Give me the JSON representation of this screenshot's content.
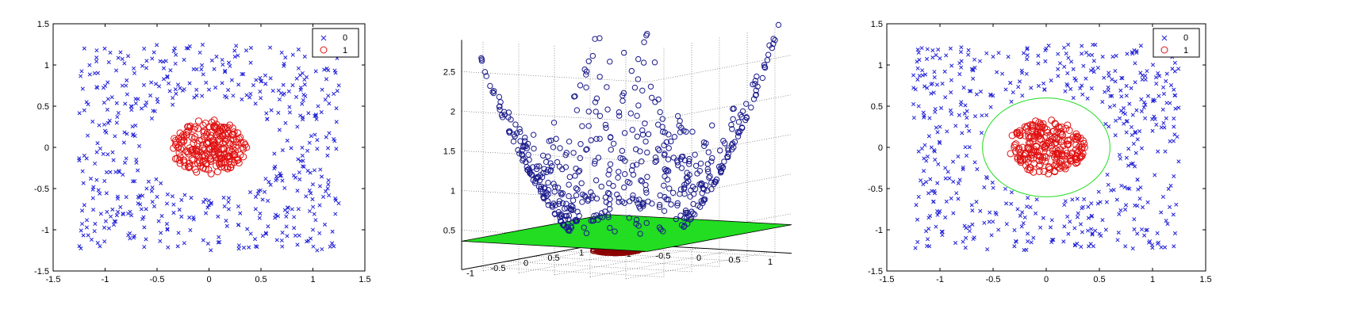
{
  "chart_data": [
    {
      "type": "scatter",
      "title": "",
      "xlabel": "",
      "ylabel": "",
      "xlim": [
        -1.5,
        1.5
      ],
      "ylim": [
        -1.5,
        1.5
      ],
      "xticks": [
        "-1.5",
        "-1",
        "-0.5",
        "0",
        "0.5",
        "1",
        "1.5"
      ],
      "yticks": [
        "-1.5",
        "-1",
        "-0.5",
        "0",
        "0.5",
        "1",
        "1.5"
      ],
      "grid": false,
      "legend": {
        "placement": "top-right",
        "entries": [
          "0",
          "1"
        ]
      },
      "series": [
        {
          "name": "0",
          "marker": "x",
          "color": "#2020d8",
          "points": [
            [
              -1.2,
              1.2
            ],
            [
              -1.1,
              0.9
            ],
            [
              -0.95,
              1.15
            ],
            [
              -0.8,
              0.75
            ],
            [
              -0.6,
              1.05
            ],
            [
              -0.4,
              0.85
            ],
            [
              -0.2,
              1.2
            ],
            [
              0.05,
              0.95
            ],
            [
              0.25,
              1.1
            ],
            [
              0.5,
              0.8
            ],
            [
              0.7,
              1.15
            ],
            [
              0.9,
              0.9
            ],
            [
              1.1,
              1.2
            ],
            [
              1.2,
              0.65
            ],
            [
              -1.2,
              0.45
            ],
            [
              -1.0,
              0.2
            ],
            [
              -0.75,
              0.5
            ],
            [
              -0.55,
              0.35
            ],
            [
              0.6,
              0.45
            ],
            [
              0.85,
              0.25
            ],
            [
              1.05,
              0.5
            ],
            [
              1.2,
              0.1
            ],
            [
              -1.2,
              -0.1
            ],
            [
              -0.95,
              -0.3
            ],
            [
              -0.7,
              -0.15
            ],
            [
              -0.6,
              -0.5
            ],
            [
              0.65,
              -0.35
            ],
            [
              0.9,
              -0.1
            ],
            [
              1.15,
              -0.4
            ],
            [
              -1.2,
              -0.7
            ],
            [
              -0.9,
              -0.9
            ],
            [
              -0.65,
              -0.75
            ],
            [
              -0.4,
              -1.0
            ],
            [
              -0.15,
              -0.85
            ],
            [
              0.1,
              -1.15
            ],
            [
              0.3,
              -0.8
            ],
            [
              0.55,
              -1.05
            ],
            [
              0.8,
              -0.75
            ],
            [
              1.0,
              -1.0
            ],
            [
              1.2,
              -1.2
            ],
            [
              -1.05,
              -1.2
            ],
            [
              -0.3,
              -1.2
            ],
            [
              0.45,
              -1.2
            ],
            [
              1.1,
              -0.6
            ],
            [
              -0.35,
              0.6
            ],
            [
              0.4,
              0.65
            ],
            [
              -0.5,
              -0.6
            ],
            [
              0.45,
              -0.6
            ],
            [
              0.0,
              -0.7
            ],
            [
              0.0,
              0.7
            ]
          ]
        },
        {
          "name": "1",
          "marker": "o",
          "color": "#e01010",
          "points": [
            [
              -0.3,
              0.0
            ],
            [
              -0.25,
              0.15
            ],
            [
              -0.2,
              0.25
            ],
            [
              -0.1,
              0.32
            ],
            [
              0.05,
              0.33
            ],
            [
              0.2,
              0.27
            ],
            [
              0.3,
              0.12
            ],
            [
              0.33,
              -0.02
            ],
            [
              0.28,
              -0.15
            ],
            [
              0.18,
              -0.26
            ],
            [
              0.02,
              -0.32
            ],
            [
              -0.12,
              -0.3
            ],
            [
              -0.24,
              -0.18
            ],
            [
              -0.15,
              0.05
            ],
            [
              -0.05,
              0.18
            ],
            [
              0.1,
              0.1
            ],
            [
              0.15,
              -0.08
            ],
            [
              0.0,
              -0.12
            ],
            [
              -0.1,
              -0.05
            ],
            [
              0.05,
              0.02
            ]
          ]
        }
      ]
    },
    {
      "type": "scatter3d",
      "title": "",
      "zlim": [
        0,
        3
      ],
      "zticks": [
        "0.5",
        "1",
        "1.5",
        "2",
        "2.5"
      ],
      "xticks": [
        "-1",
        "-0.5",
        "0",
        "0.5",
        "1"
      ],
      "yticks": [
        "-1",
        "-0.5",
        "0",
        "0.5",
        "1"
      ],
      "grid": true,
      "colors": {
        "class0": "#1a1a8c",
        "class1": "#8b0000",
        "plane": "#22dd22"
      },
      "series": [
        {
          "name": "",
          "marker": "o",
          "note_z": "z = x^2 + y^2"
        },
        {
          "name": "",
          "marker": "o"
        }
      ],
      "plane_z": 0.36
    },
    {
      "type": "scatter",
      "title": "",
      "xlabel": "",
      "ylabel": "",
      "xlim": [
        -1.5,
        1.5
      ],
      "ylim": [
        -1.5,
        1.5
      ],
      "xticks": [
        "-1.5",
        "-1",
        "-0.5",
        "0",
        "0.5",
        "1",
        "1.5"
      ],
      "yticks": [
        "-1.5",
        "-1",
        "-0.5",
        "0",
        "0.5",
        "1",
        "1.5"
      ],
      "grid": false,
      "legend": {
        "placement": "top-right",
        "entries": [
          "0",
          "1"
        ]
      },
      "boundary": {
        "shape": "circle",
        "radius": 0.6,
        "color": "#22dd22"
      },
      "series": [
        {
          "name": "0",
          "marker": "x",
          "color": "#2020d8",
          "points": [
            [
              -1.2,
              1.15
            ],
            [
              -1.05,
              0.85
            ],
            [
              -0.9,
              1.2
            ],
            [
              -0.7,
              0.95
            ],
            [
              -0.5,
              1.1
            ],
            [
              -0.25,
              0.8
            ],
            [
              0.0,
              1.2
            ],
            [
              0.2,
              0.9
            ],
            [
              0.45,
              1.05
            ],
            [
              0.65,
              0.8
            ],
            [
              0.85,
              1.15
            ],
            [
              1.05,
              0.9
            ],
            [
              1.2,
              0.7
            ],
            [
              -1.2,
              0.5
            ],
            [
              -1.0,
              0.25
            ],
            [
              -0.8,
              0.55
            ],
            [
              0.85,
              0.45
            ],
            [
              1.0,
              0.2
            ],
            [
              1.2,
              0.35
            ],
            [
              -1.2,
              -0.05
            ],
            [
              -0.95,
              -0.25
            ],
            [
              -0.75,
              -0.1
            ],
            [
              0.8,
              -0.2
            ],
            [
              1.05,
              -0.05
            ],
            [
              1.2,
              -0.35
            ],
            [
              -1.2,
              -0.6
            ],
            [
              -0.95,
              -0.85
            ],
            [
              -0.7,
              -0.7
            ],
            [
              -0.45,
              -1.0
            ],
            [
              -0.2,
              -0.85
            ],
            [
              0.05,
              -1.15
            ],
            [
              0.3,
              -0.8
            ],
            [
              0.5,
              -1.05
            ],
            [
              0.75,
              -0.7
            ],
            [
              0.95,
              -1.0
            ],
            [
              1.2,
              -1.2
            ],
            [
              -1.1,
              -1.2
            ],
            [
              -0.3,
              -1.2
            ],
            [
              0.4,
              -1.2
            ],
            [
              1.1,
              -0.6
            ]
          ]
        },
        {
          "name": "1",
          "marker": "o",
          "color": "#e01010",
          "points": [
            [
              -0.3,
              0.0
            ],
            [
              -0.25,
              0.15
            ],
            [
              -0.2,
              0.25
            ],
            [
              -0.1,
              0.32
            ],
            [
              0.05,
              0.33
            ],
            [
              0.2,
              0.27
            ],
            [
              0.3,
              0.12
            ],
            [
              0.33,
              -0.02
            ],
            [
              0.28,
              -0.15
            ],
            [
              0.18,
              -0.26
            ],
            [
              0.02,
              -0.32
            ],
            [
              -0.12,
              -0.3
            ],
            [
              -0.24,
              -0.18
            ],
            [
              -0.15,
              0.05
            ],
            [
              -0.05,
              0.18
            ],
            [
              0.1,
              0.1
            ],
            [
              0.15,
              -0.08
            ],
            [
              0.0,
              -0.12
            ],
            [
              -0.1,
              -0.05
            ],
            [
              0.05,
              0.02
            ]
          ]
        }
      ]
    }
  ]
}
